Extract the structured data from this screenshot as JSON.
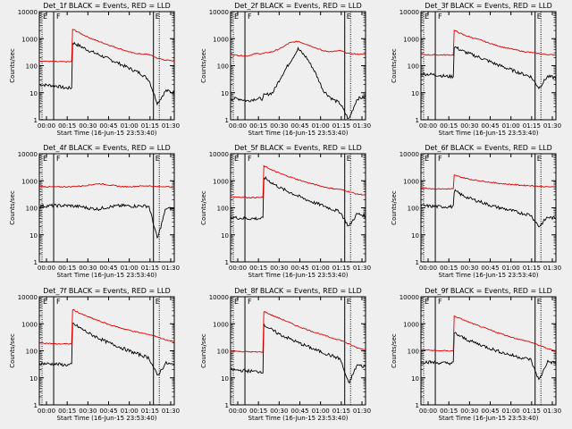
{
  "colors": {
    "background": "#efefef",
    "events": "#000000",
    "lld": "#e00000"
  },
  "chart_data": [
    {
      "type": "line",
      "title": "Det_1f BLACK = Events, RED = LLD",
      "xlabel": "Start Time (16-Jun-15 23:53:40)",
      "ylabel": "Counts/sec",
      "yscale": "log",
      "ylim": [
        1,
        10000
      ],
      "xticks": [
        "00:00",
        "00:15",
        "00:30",
        "00:45",
        "01:00",
        "01:15",
        "01:30"
      ],
      "yticks": [
        "1",
        "10",
        "100",
        "1000",
        "10000"
      ],
      "markers": [
        "E",
        "F",
        "E"
      ],
      "series": [
        {
          "name": "Events",
          "color": "#000000",
          "values": [
            20,
            19,
            18,
            15,
            700,
            500,
            350,
            260,
            190,
            140,
            100,
            72,
            52,
            30,
            4,
            12,
            10
          ]
        },
        {
          "name": "LLD",
          "color": "#e00000",
          "values": [
            150,
            145,
            140,
            140,
            2200,
            1500,
            1050,
            800,
            620,
            480,
            380,
            300,
            270,
            260,
            190,
            160,
            150
          ]
        }
      ]
    },
    {
      "type": "line",
      "title": "Det_2f BLACK = Events, RED = LLD",
      "xlabel": "Start Time (16-Jun-15 23:53:40)",
      "ylabel": "Counts/sec",
      "yscale": "log",
      "ylim": [
        1,
        10000
      ],
      "xticks": [
        "00:00",
        "00:15",
        "00:30",
        "00:45",
        "01:00",
        "01:15",
        "01:30"
      ],
      "yticks": [
        "1",
        "10",
        "100",
        "1000",
        "10000"
      ],
      "markers": [
        "E",
        "F",
        "E"
      ],
      "series": [
        {
          "name": "Events",
          "color": "#000000",
          "values": [
            6,
            6,
            5,
            6,
            8,
            10,
            40,
            130,
            420,
            200,
            60,
            12,
            6,
            4,
            1,
            6,
            7
          ]
        },
        {
          "name": "LLD",
          "color": "#e00000",
          "values": [
            260,
            240,
            230,
            280,
            290,
            330,
            450,
            700,
            800,
            620,
            470,
            350,
            330,
            360,
            280,
            270,
            260
          ]
        }
      ]
    },
    {
      "type": "line",
      "title": "Det_3f BLACK = Events, RED = LLD",
      "xlabel": "Start Time (16-Jun-15 23:53:40)",
      "ylabel": "Counts/sec",
      "yscale": "log",
      "ylim": [
        1,
        10000
      ],
      "xticks": [
        "00:00",
        "00:15",
        "00:30",
        "00:45",
        "01:00",
        "01:15",
        "01:30"
      ],
      "yticks": [
        "1",
        "10",
        "100",
        "1000",
        "10000"
      ],
      "markers": [
        "E",
        "F",
        "E"
      ],
      "series": [
        {
          "name": "Events",
          "color": "#000000",
          "values": [
            50,
            48,
            45,
            40,
            500,
            340,
            260,
            200,
            150,
            110,
            85,
            65,
            50,
            40,
            15,
            40,
            35
          ]
        },
        {
          "name": "LLD",
          "color": "#e00000",
          "values": [
            260,
            250,
            250,
            250,
            2000,
            1400,
            1100,
            900,
            700,
            560,
            460,
            400,
            340,
            310,
            280,
            260,
            250
          ]
        }
      ]
    },
    {
      "type": "line",
      "title": "Det_4f BLACK = Events, RED = LLD",
      "xlabel": "Start Time (16-Jun-15 23:53:40)",
      "ylabel": "Counts/sec",
      "yscale": "log",
      "ylim": [
        1,
        10000
      ],
      "xticks": [
        "00:00",
        "00:15",
        "00:30",
        "00:45",
        "01:00",
        "01:15",
        "01:30"
      ],
      "yticks": [
        "1",
        "10",
        "100",
        "1000",
        "10000"
      ],
      "markers": [
        "E",
        "F",
        "E"
      ],
      "series": [
        {
          "name": "Events",
          "color": "#000000",
          "values": [
            115,
            118,
            120,
            120,
            115,
            110,
            95,
            90,
            105,
            115,
            120,
            115,
            118,
            115,
            7,
            95,
            90
          ]
        },
        {
          "name": "LLD",
          "color": "#e00000",
          "values": [
            620,
            600,
            590,
            600,
            620,
            640,
            700,
            780,
            720,
            650,
            600,
            610,
            640,
            650,
            600,
            620,
            560
          ]
        }
      ]
    },
    {
      "type": "line",
      "title": "Det_5f BLACK = Events, RED = LLD",
      "xlabel": "Start Time (16-Jun-15 23:53:40)",
      "ylabel": "Counts/sec",
      "yscale": "log",
      "ylim": [
        1,
        10000
      ],
      "xticks": [
        "00:00",
        "00:15",
        "00:30",
        "00:45",
        "01:00",
        "01:15",
        "01:30"
      ],
      "yticks": [
        "1",
        "10",
        "100",
        "1000",
        "10000"
      ],
      "markers": [
        "E",
        "F",
        "E"
      ],
      "series": [
        {
          "name": "Events",
          "color": "#000000",
          "values": [
            45,
            42,
            40,
            40,
            1300,
            800,
            520,
            380,
            270,
            200,
            150,
            120,
            90,
            70,
            20,
            60,
            50
          ]
        },
        {
          "name": "LLD",
          "color": "#e00000",
          "values": [
            260,
            250,
            240,
            240,
            3500,
            2400,
            1800,
            1400,
            1100,
            880,
            720,
            600,
            520,
            480,
            400,
            320,
            300
          ]
        }
      ]
    },
    {
      "type": "line",
      "title": "Det_6f BLACK = Events, RED = LLD",
      "xlabel": "Start Time (16-Jun-15 23:53:40)",
      "ylabel": "Counts/sec",
      "yscale": "log",
      "ylim": [
        1,
        10000
      ],
      "xticks": [
        "00:00",
        "00:15",
        "00:30",
        "00:45",
        "01:00",
        "01:15",
        "01:30"
      ],
      "yticks": [
        "1",
        "10",
        "100",
        "1000",
        "10000"
      ],
      "markers": [
        "E",
        "F",
        "E"
      ],
      "series": [
        {
          "name": "Events",
          "color": "#000000",
          "values": [
            120,
            115,
            110,
            110,
            420,
            280,
            210,
            170,
            130,
            105,
            90,
            75,
            62,
            55,
            20,
            45,
            40
          ]
        },
        {
          "name": "LLD",
          "color": "#e00000",
          "values": [
            550,
            520,
            500,
            500,
            1600,
            1300,
            1100,
            1000,
            900,
            820,
            760,
            720,
            680,
            660,
            620,
            600,
            580
          ]
        }
      ]
    },
    {
      "type": "line",
      "title": "Det_7f BLACK = Events, RED = LLD",
      "xlabel": "Start Time (16-Jun-15 23:53:40)",
      "ylabel": "Counts/sec",
      "yscale": "log",
      "ylim": [
        1,
        10000
      ],
      "xticks": [
        "00:00",
        "00:15",
        "00:30",
        "00:45",
        "01:00",
        "01:15",
        "01:30"
      ],
      "yticks": [
        "1",
        "10",
        "100",
        "1000",
        "10000"
      ],
      "markers": [
        "E",
        "F",
        "E"
      ],
      "series": [
        {
          "name": "Events",
          "color": "#000000",
          "values": [
            35,
            33,
            32,
            30,
            1000,
            650,
            420,
            300,
            210,
            160,
            120,
            90,
            70,
            55,
            12,
            35,
            30
          ]
        },
        {
          "name": "LLD",
          "color": "#e00000",
          "values": [
            200,
            190,
            180,
            180,
            3300,
            2300,
            1700,
            1300,
            1000,
            800,
            650,
            540,
            460,
            400,
            330,
            250,
            220
          ]
        }
      ]
    },
    {
      "type": "line",
      "title": "Det_8f BLACK = Events, RED = LLD",
      "xlabel": "Start Time (16-Jun-15 23:53:40)",
      "ylabel": "Counts/sec",
      "yscale": "log",
      "ylim": [
        1,
        10000
      ],
      "xticks": [
        "00:00",
        "00:15",
        "00:30",
        "00:45",
        "01:00",
        "01:15",
        "01:30"
      ],
      "yticks": [
        "1",
        "10",
        "100",
        "1000",
        "10000"
      ],
      "markers": [
        "E",
        "F",
        "E"
      ],
      "series": [
        {
          "name": "Events",
          "color": "#000000",
          "values": [
            20,
            19,
            18,
            17,
            900,
            560,
            380,
            280,
            200,
            150,
            110,
            85,
            65,
            50,
            6,
            30,
            25
          ]
        },
        {
          "name": "LLD",
          "color": "#e00000",
          "values": [
            100,
            95,
            92,
            90,
            2800,
            2000,
            1500,
            1100,
            800,
            620,
            480,
            380,
            300,
            250,
            180,
            130,
            110
          ]
        }
      ]
    },
    {
      "type": "line",
      "title": "Det_9f BLACK = Events, RED = LLD",
      "xlabel": "Start Time (16-Jun-15 23:53:40)",
      "ylabel": "Counts/sec",
      "yscale": "log",
      "ylim": [
        1,
        10000
      ],
      "xticks": [
        "00:00",
        "00:15",
        "00:30",
        "00:45",
        "01:00",
        "01:15",
        "01:30"
      ],
      "yticks": [
        "1",
        "10",
        "100",
        "1000",
        "10000"
      ],
      "markers": [
        "E",
        "F",
        "E"
      ],
      "series": [
        {
          "name": "Events",
          "color": "#000000",
          "values": [
            40,
            38,
            36,
            35,
            450,
            300,
            220,
            170,
            130,
            100,
            80,
            65,
            55,
            48,
            8,
            40,
            35
          ]
        },
        {
          "name": "LLD",
          "color": "#e00000",
          "values": [
            110,
            105,
            100,
            100,
            1900,
            1400,
            1050,
            800,
            620,
            480,
            380,
            300,
            250,
            210,
            160,
            120,
            100
          ]
        }
      ]
    }
  ]
}
